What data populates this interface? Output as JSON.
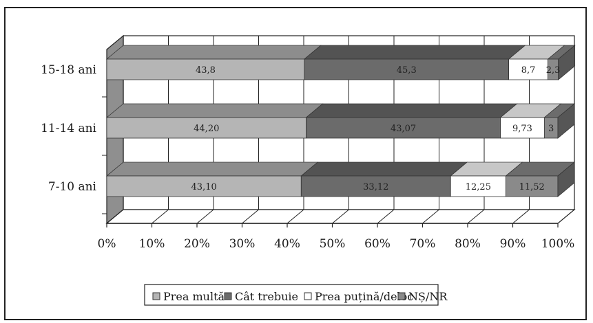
{
  "chart_data": {
    "type": "bar",
    "orientation": "horizontal",
    "stacked": "percent",
    "three_d": true,
    "categories": [
      "15-18 ani",
      "11-14 ani",
      "7-10 ani"
    ],
    "series": [
      {
        "name": "Prea multă",
        "values": [
          43.8,
          44.2,
          43.1
        ],
        "labels": [
          "43,8",
          "44,20",
          "43,10"
        ],
        "color": "#b5b5b5"
      },
      {
        "name": "Cât trebuie",
        "values": [
          45.3,
          43.07,
          33.12
        ],
        "labels": [
          "45,3",
          "43,07",
          "33,12"
        ],
        "color": "#6b6b6b"
      },
      {
        "name": "Prea puțină/deloc",
        "values": [
          8.7,
          9.73,
          12.25
        ],
        "labels": [
          "8,7",
          "9,73",
          "12,25"
        ],
        "color": "#ffffff"
      },
      {
        "name": "NȘ/NR",
        "values": [
          2.3,
          3,
          11.52
        ],
        "labels": [
          "2,3",
          "3",
          "11,52"
        ],
        "color": "#8a8a8a"
      }
    ],
    "xticks": [
      "0%",
      "10%",
      "20%",
      "30%",
      "40%",
      "50%",
      "60%",
      "70%",
      "80%",
      "90%",
      "100%"
    ],
    "xlim": [
      0,
      100
    ],
    "grid": true,
    "legend": "bottom",
    "title": "",
    "xlabel": "",
    "ylabel": ""
  }
}
